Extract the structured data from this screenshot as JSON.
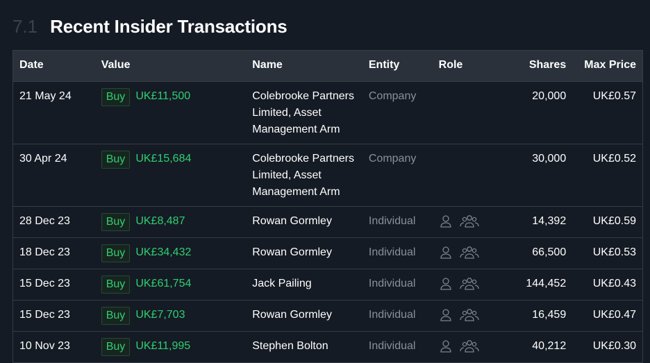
{
  "header": {
    "number": "7.1",
    "title": "Recent Insider Transactions"
  },
  "table": {
    "columns": [
      "Date",
      "Value",
      "Name",
      "Entity",
      "Role",
      "Shares",
      "Max Price"
    ],
    "rows": [
      {
        "date": "21 May 24",
        "type": "Buy",
        "value": "UK£11,500",
        "name": "Colebrooke Partners Limited, Asset Management Arm",
        "entity": "Company",
        "shares": "20,000",
        "max_price": "UK£0.57"
      },
      {
        "date": "30 Apr 24",
        "type": "Buy",
        "value": "UK£15,684",
        "name": "Colebrooke Partners Limited, Asset Management Arm",
        "entity": "Company",
        "shares": "30,000",
        "max_price": "UK£0.52"
      },
      {
        "date": "28 Dec 23",
        "type": "Buy",
        "value": "UK£8,487",
        "name": "Rowan Gormley",
        "entity": "Individual",
        "shares": "14,392",
        "max_price": "UK£0.59"
      },
      {
        "date": "18 Dec 23",
        "type": "Buy",
        "value": "UK£34,432",
        "name": "Rowan Gormley",
        "entity": "Individual",
        "shares": "66,500",
        "max_price": "UK£0.53"
      },
      {
        "date": "15 Dec 23",
        "type": "Buy",
        "value": "UK£61,754",
        "name": "Jack Pailing",
        "entity": "Individual",
        "shares": "144,452",
        "max_price": "UK£0.43"
      },
      {
        "date": "15 Dec 23",
        "type": "Buy",
        "value": "UK£7,703",
        "name": "Rowan Gormley",
        "entity": "Individual",
        "shares": "16,459",
        "max_price": "UK£0.47"
      },
      {
        "date": "10 Nov 23",
        "type": "Buy",
        "value": "UK£11,995",
        "name": "Stephen Bolton",
        "entity": "Individual",
        "shares": "40,212",
        "max_price": "UK£0.30"
      }
    ]
  }
}
